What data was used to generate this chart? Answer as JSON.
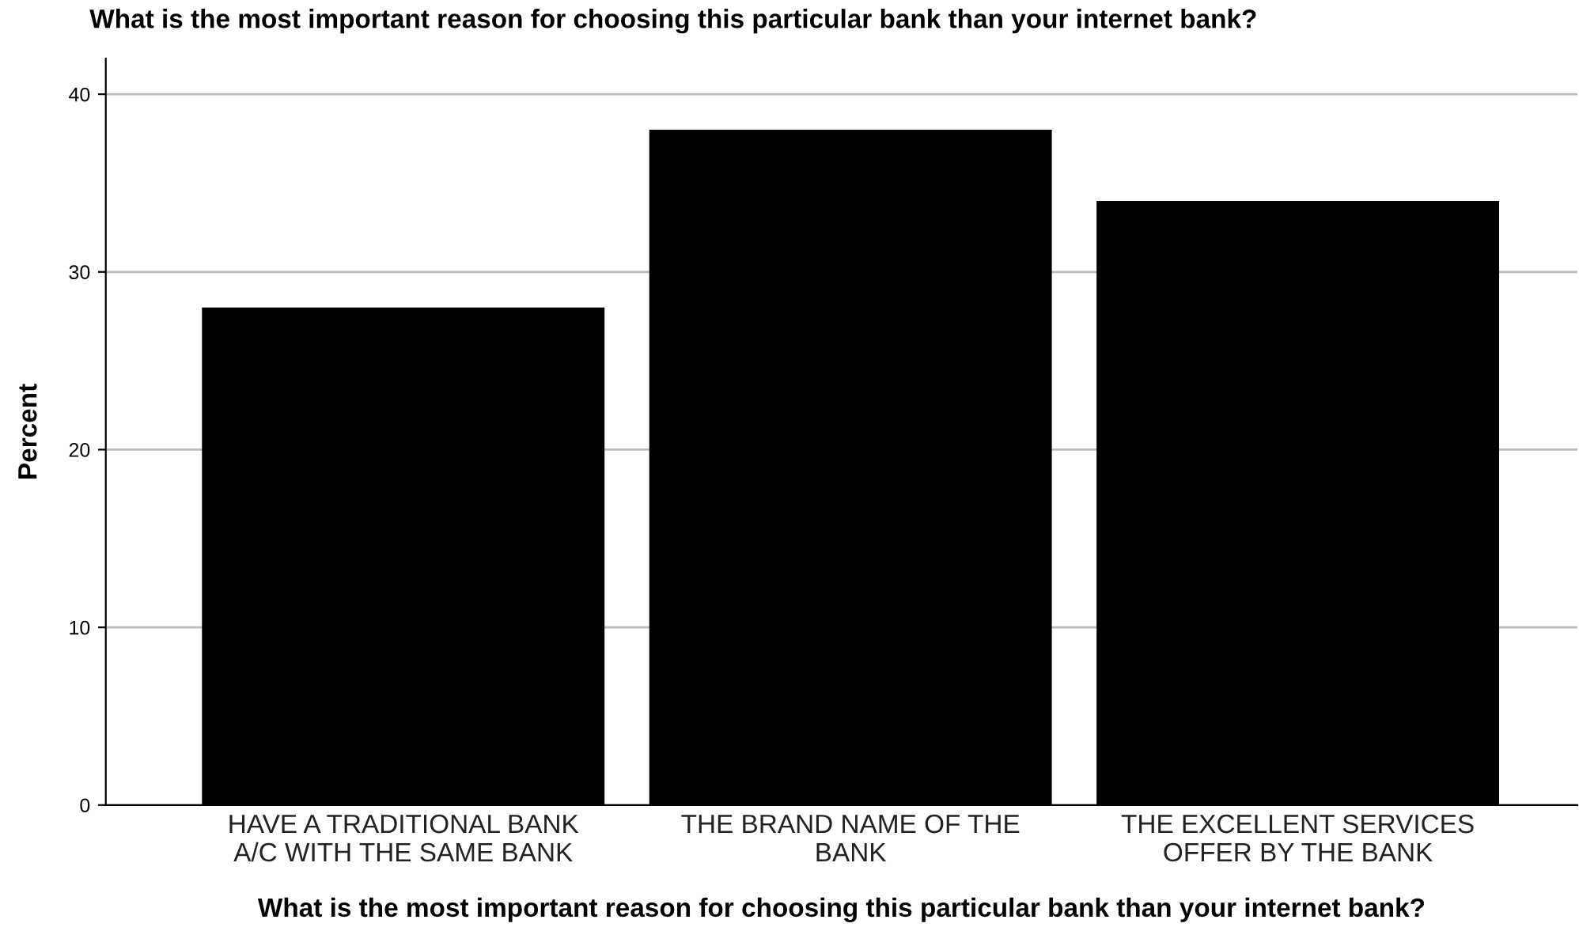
{
  "chart_data": {
    "type": "bar",
    "title": "What is the most important reason for choosing this particular bank than your internet bank?",
    "xlabel": "What is the most important reason for choosing this particular bank than your internet bank?",
    "ylabel": "Percent",
    "categories": [
      "HAVE A TRADITIONAL BANK\nA/C WITH THE SAME BANK",
      "THE BRAND NAME OF THE\nBANK",
      "THE EXCELLENT SERVICES\nOFFER BY THE BANK"
    ],
    "values": [
      28,
      38,
      34
    ],
    "color": "#000000",
    "ylim": [
      0,
      42
    ],
    "yticks": [
      0,
      10,
      20,
      30,
      40
    ],
    "grid": "y"
  }
}
